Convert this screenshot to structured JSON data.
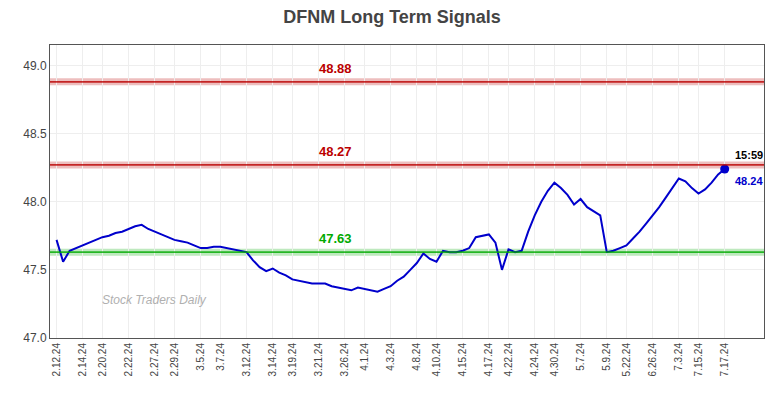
{
  "chart_data": {
    "type": "line",
    "title": "DFNM Long Term Signals",
    "categories": [
      "2.12.24",
      null,
      null,
      null,
      "2.14.24",
      null,
      null,
      "2.20.24",
      null,
      null,
      null,
      "2.22.24",
      null,
      null,
      null,
      "2.27.24",
      null,
      null,
      "2.29.24",
      null,
      null,
      null,
      "3.5.24",
      null,
      null,
      "3.7.24",
      null,
      null,
      null,
      "3.12.24",
      null,
      null,
      null,
      "3.14.24",
      null,
      null,
      "3.19.24",
      null,
      null,
      null,
      "3.21.24",
      null,
      null,
      null,
      "3.26.24",
      null,
      null,
      "4.1.24",
      null,
      null,
      null,
      "4.3.24",
      null,
      null,
      null,
      "4.8.24",
      null,
      null,
      "4.10.24",
      null,
      null,
      null,
      "4.15.24",
      null,
      null,
      null,
      "4.17.24",
      null,
      null,
      "4.22.24",
      null,
      null,
      null,
      "4.24.24",
      null,
      null,
      "4.30.24",
      null,
      null,
      null,
      "5.7.24",
      null,
      null,
      null,
      "5.9.24",
      null,
      null,
      "5.22.24",
      null,
      null,
      null,
      "6.26.24",
      null,
      null,
      null,
      "7.3.24",
      null,
      null,
      "7.15.24",
      null,
      null,
      null,
      "7.17.24"
    ],
    "values": [
      47.72,
      47.56,
      47.64,
      47.66,
      47.68,
      47.7,
      47.72,
      47.74,
      47.75,
      47.77,
      47.78,
      47.8,
      47.82,
      47.83,
      47.8,
      47.78,
      47.76,
      47.74,
      47.72,
      47.71,
      47.7,
      47.68,
      47.66,
      47.66,
      47.67,
      47.67,
      47.66,
      47.65,
      47.64,
      47.63,
      47.57,
      47.52,
      47.49,
      47.51,
      47.48,
      47.46,
      47.43,
      47.42,
      47.41,
      47.4,
      47.4,
      47.4,
      47.38,
      47.37,
      47.36,
      47.35,
      47.37,
      47.36,
      47.35,
      47.34,
      47.36,
      47.38,
      47.42,
      47.45,
      47.5,
      47.55,
      47.62,
      47.58,
      47.56,
      47.64,
      47.63,
      47.63,
      47.64,
      47.66,
      47.74,
      47.75,
      47.76,
      47.7,
      47.5,
      47.65,
      47.63,
      47.64,
      47.78,
      47.9,
      48.0,
      48.08,
      48.14,
      48.1,
      48.05,
      47.98,
      48.02,
      47.96,
      47.93,
      47.9,
      47.63,
      47.64,
      47.66,
      47.68,
      47.73,
      47.78,
      47.84,
      47.9,
      47.96,
      48.03,
      48.1,
      48.17,
      48.15,
      48.1,
      48.06,
      48.09,
      48.14,
      48.2,
      48.24
    ],
    "color": "#0000cc",
    "ylim": [
      47.0,
      49.15
    ],
    "yticks": [
      {
        "value": 47.0,
        "label": "47.0"
      },
      47.5,
      {
        "value": 48.0,
        "label": "48.0"
      },
      48.5,
      {
        "value": 49.0,
        "label": "49.0"
      }
    ],
    "grid": true,
    "hlines": [
      {
        "value": 47.63,
        "label": "47.63",
        "color": "#00aa00"
      },
      {
        "value": 48.27,
        "label": "48.27",
        "color": "#bb0000"
      },
      {
        "value": 48.88,
        "label": "48.88",
        "color": "#bb0000"
      }
    ],
    "last_point": {
      "time_label": "15:59",
      "value_label": "48.24",
      "color": "#0000cc"
    },
    "watermark": "Stock Traders Daily"
  }
}
